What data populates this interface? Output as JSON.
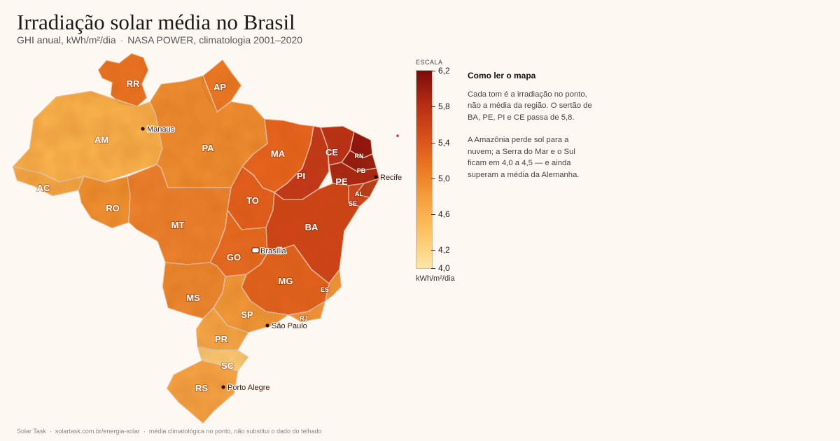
{
  "title": "Irradiação solar média no Brasil",
  "subtitle_metric": "GHI anual, kWh/m²/dia",
  "subtitle_separator": "·",
  "subtitle_source": "NASA POWER, climatologia 2001–2020",
  "states": [
    {
      "uf": "RR",
      "color": "#ec7424"
    },
    {
      "uf": "AP",
      "color": "#ec7a26"
    },
    {
      "uf": "AM",
      "color": "#fbb751"
    },
    {
      "uf": "PA",
      "color": "#f08f33"
    },
    {
      "uf": "AC",
      "color": "#f9ae4a"
    },
    {
      "uf": "RO",
      "color": "#f19333"
    },
    {
      "uf": "MT",
      "color": "#ed8330"
    },
    {
      "uf": "MA",
      "color": "#e96420"
    },
    {
      "uf": "PI",
      "color": "#c2351b"
    },
    {
      "uf": "CE",
      "color": "#b82d18"
    },
    {
      "uf": "RN",
      "color": "#8c0f10"
    },
    {
      "uf": "PB",
      "color": "#8f1411"
    },
    {
      "uf": "PE",
      "color": "#a52214"
    },
    {
      "uf": "AL",
      "color": "#b8391d"
    },
    {
      "uf": "SE",
      "color": "#cd4420"
    },
    {
      "uf": "TO",
      "color": "#e45e1f"
    },
    {
      "uf": "BA",
      "color": "#cf4219"
    },
    {
      "uf": "GO",
      "color": "#e76b22"
    },
    {
      "uf": "MG",
      "color": "#e3621f"
    },
    {
      "uf": "ES",
      "color": "#f2963c"
    },
    {
      "uf": "RJ",
      "color": "#f39a40"
    },
    {
      "uf": "MS",
      "color": "#ee8a32"
    },
    {
      "uf": "SP",
      "color": "#f39d3d"
    },
    {
      "uf": "PR",
      "color": "#f8ab4c"
    },
    {
      "uf": "SC",
      "color": "#fdd27c"
    },
    {
      "uf": "RS",
      "color": "#f7a649"
    }
  ],
  "cities": [
    {
      "name": "Manaus",
      "marker": "dot"
    },
    {
      "name": "Recife",
      "marker": "dot"
    },
    {
      "name": "Brasília",
      "marker": "capital"
    },
    {
      "name": "São Paulo",
      "marker": "dot"
    },
    {
      "name": "Porto Alegre",
      "marker": "dot"
    }
  ],
  "scale": {
    "header": "ESCALA",
    "unit": "kWh/m²/dia",
    "min": 4.0,
    "max": 6.2,
    "ticks": [
      "6,2",
      "5,8",
      "5,4",
      "5,0",
      "4,6",
      "4,2",
      "4,0"
    ],
    "colors": [
      "#fde6a8",
      "#fdbf5c",
      "#f5a040",
      "#ec7a22",
      "#d9531a",
      "#b82f14",
      "#7a0b0b"
    ]
  },
  "note": {
    "heading": "Como ler o mapa",
    "p1": "Cada tom é a irradiação no ponto, não a média da região. O sertão de BA, PE, PI e CE passa de 5,8.",
    "p2": "A Amazônia perde sol para a nuvem; a Serra do Mar e o Sul ficam em 4,0 a 4,5 — e ainda superam a média da Alemanha."
  },
  "footer": {
    "brand": "Solar Task",
    "url": "solartask.com.br/energia-solar",
    "disclaimer": "média climatológica no ponto, não substitui o dado do telhado",
    "separator": "·"
  }
}
